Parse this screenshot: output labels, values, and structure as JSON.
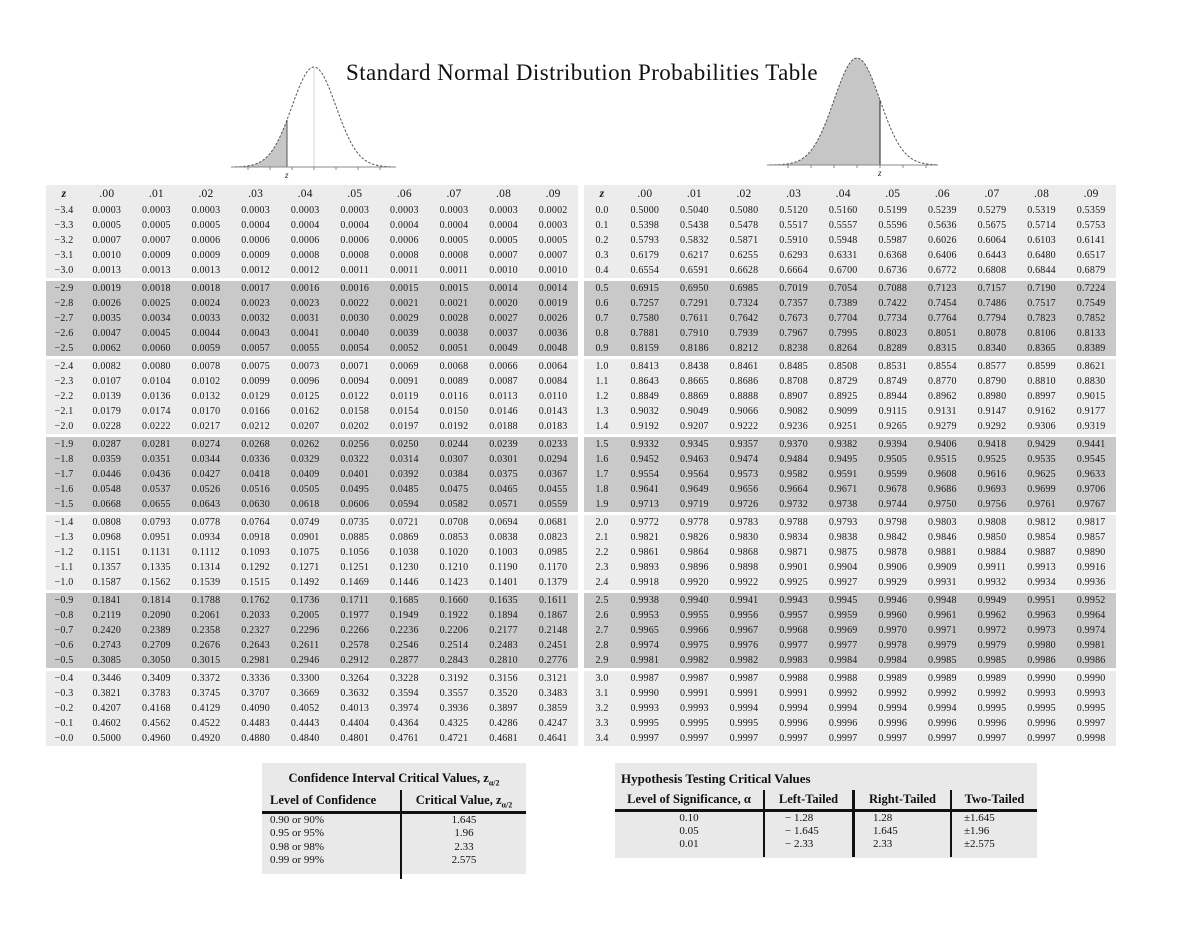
{
  "title": "Standard Normal Distribution Probabilities Table",
  "curves": {
    "left": {
      "axis_label": "z"
    },
    "right": {
      "axis_label": "z"
    }
  },
  "neg_table": {
    "header": [
      "z",
      ".00",
      ".01",
      ".02",
      ".03",
      ".04",
      ".05",
      ".06",
      ".07",
      ".08",
      ".09"
    ],
    "groups": [
      [
        [
          "−3.4",
          "0.0003",
          "0.0003",
          "0.0003",
          "0.0003",
          "0.0003",
          "0.0003",
          "0.0003",
          "0.0003",
          "0.0003",
          "0.0002"
        ],
        [
          "−3.3",
          "0.0005",
          "0.0005",
          "0.0005",
          "0.0004",
          "0.0004",
          "0.0004",
          "0.0004",
          "0.0004",
          "0.0004",
          "0.0003"
        ],
        [
          "−3.2",
          "0.0007",
          "0.0007",
          "0.0006",
          "0.0006",
          "0.0006",
          "0.0006",
          "0.0006",
          "0.0005",
          "0.0005",
          "0.0005"
        ],
        [
          "−3.1",
          "0.0010",
          "0.0009",
          "0.0009",
          "0.0009",
          "0.0008",
          "0.0008",
          "0.0008",
          "0.0008",
          "0.0007",
          "0.0007"
        ],
        [
          "−3.0",
          "0.0013",
          "0.0013",
          "0.0013",
          "0.0012",
          "0.0012",
          "0.0011",
          "0.0011",
          "0.0011",
          "0.0010",
          "0.0010"
        ]
      ],
      [
        [
          "−2.9",
          "0.0019",
          "0.0018",
          "0.0018",
          "0.0017",
          "0.0016",
          "0.0016",
          "0.0015",
          "0.0015",
          "0.0014",
          "0.0014"
        ],
        [
          "−2.8",
          "0.0026",
          "0.0025",
          "0.0024",
          "0.0023",
          "0.0023",
          "0.0022",
          "0.0021",
          "0.0021",
          "0.0020",
          "0.0019"
        ],
        [
          "−2.7",
          "0.0035",
          "0.0034",
          "0.0033",
          "0.0032",
          "0.0031",
          "0.0030",
          "0.0029",
          "0.0028",
          "0.0027",
          "0.0026"
        ],
        [
          "−2.6",
          "0.0047",
          "0.0045",
          "0.0044",
          "0.0043",
          "0.0041",
          "0.0040",
          "0.0039",
          "0.0038",
          "0.0037",
          "0.0036"
        ],
        [
          "−2.5",
          "0.0062",
          "0.0060",
          "0.0059",
          "0.0057",
          "0.0055",
          "0.0054",
          "0.0052",
          "0.0051",
          "0.0049",
          "0.0048"
        ]
      ],
      [
        [
          "−2.4",
          "0.0082",
          "0.0080",
          "0.0078",
          "0.0075",
          "0.0073",
          "0.0071",
          "0.0069",
          "0.0068",
          "0.0066",
          "0.0064"
        ],
        [
          "−2.3",
          "0.0107",
          "0.0104",
          "0.0102",
          "0.0099",
          "0.0096",
          "0.0094",
          "0.0091",
          "0.0089",
          "0.0087",
          "0.0084"
        ],
        [
          "−2.2",
          "0.0139",
          "0.0136",
          "0.0132",
          "0.0129",
          "0.0125",
          "0.0122",
          "0.0119",
          "0.0116",
          "0.0113",
          "0.0110"
        ],
        [
          "−2.1",
          "0.0179",
          "0.0174",
          "0.0170",
          "0.0166",
          "0.0162",
          "0.0158",
          "0.0154",
          "0.0150",
          "0.0146",
          "0.0143"
        ],
        [
          "−2.0",
          "0.0228",
          "0.0222",
          "0.0217",
          "0.0212",
          "0.0207",
          "0.0202",
          "0.0197",
          "0.0192",
          "0.0188",
          "0.0183"
        ]
      ],
      [
        [
          "−1.9",
          "0.0287",
          "0.0281",
          "0.0274",
          "0.0268",
          "0.0262",
          "0.0256",
          "0.0250",
          "0.0244",
          "0.0239",
          "0.0233"
        ],
        [
          "−1.8",
          "0.0359",
          "0.0351",
          "0.0344",
          "0.0336",
          "0.0329",
          "0.0322",
          "0.0314",
          "0.0307",
          "0.0301",
          "0.0294"
        ],
        [
          "−1.7",
          "0.0446",
          "0.0436",
          "0.0427",
          "0.0418",
          "0.0409",
          "0.0401",
          "0.0392",
          "0.0384",
          "0.0375",
          "0.0367"
        ],
        [
          "−1.6",
          "0.0548",
          "0.0537",
          "0.0526",
          "0.0516",
          "0.0505",
          "0.0495",
          "0.0485",
          "0.0475",
          "0.0465",
          "0.0455"
        ],
        [
          "−1.5",
          "0.0668",
          "0.0655",
          "0.0643",
          "0.0630",
          "0.0618",
          "0.0606",
          "0.0594",
          "0.0582",
          "0.0571",
          "0.0559"
        ]
      ],
      [
        [
          "−1.4",
          "0.0808",
          "0.0793",
          "0.0778",
          "0.0764",
          "0.0749",
          "0.0735",
          "0.0721",
          "0.0708",
          "0.0694",
          "0.0681"
        ],
        [
          "−1.3",
          "0.0968",
          "0.0951",
          "0.0934",
          "0.0918",
          "0.0901",
          "0.0885",
          "0.0869",
          "0.0853",
          "0.0838",
          "0.0823"
        ],
        [
          "−1.2",
          "0.1151",
          "0.1131",
          "0.1112",
          "0.1093",
          "0.1075",
          "0.1056",
          "0.1038",
          "0.1020",
          "0.1003",
          "0.0985"
        ],
        [
          "−1.1",
          "0.1357",
          "0.1335",
          "0.1314",
          "0.1292",
          "0.1271",
          "0.1251",
          "0.1230",
          "0.1210",
          "0.1190",
          "0.1170"
        ],
        [
          "−1.0",
          "0.1587",
          "0.1562",
          "0.1539",
          "0.1515",
          "0.1492",
          "0.1469",
          "0.1446",
          "0.1423",
          "0.1401",
          "0.1379"
        ]
      ],
      [
        [
          "−0.9",
          "0.1841",
          "0.1814",
          "0.1788",
          "0.1762",
          "0.1736",
          "0.1711",
          "0.1685",
          "0.1660",
          "0.1635",
          "0.1611"
        ],
        [
          "−0.8",
          "0.2119",
          "0.2090",
          "0.2061",
          "0.2033",
          "0.2005",
          "0.1977",
          "0.1949",
          "0.1922",
          "0.1894",
          "0.1867"
        ],
        [
          "−0.7",
          "0.2420",
          "0.2389",
          "0.2358",
          "0.2327",
          "0.2296",
          "0.2266",
          "0.2236",
          "0.2206",
          "0.2177",
          "0.2148"
        ],
        [
          "−0.6",
          "0.2743",
          "0.2709",
          "0.2676",
          "0.2643",
          "0.2611",
          "0.2578",
          "0.2546",
          "0.2514",
          "0.2483",
          "0.2451"
        ],
        [
          "−0.5",
          "0.3085",
          "0.3050",
          "0.3015",
          "0.2981",
          "0.2946",
          "0.2912",
          "0.2877",
          "0.2843",
          "0.2810",
          "0.2776"
        ]
      ],
      [
        [
          "−0.4",
          "0.3446",
          "0.3409",
          "0.3372",
          "0.3336",
          "0.3300",
          "0.3264",
          "0.3228",
          "0.3192",
          "0.3156",
          "0.3121"
        ],
        [
          "−0.3",
          "0.3821",
          "0.3783",
          "0.3745",
          "0.3707",
          "0.3669",
          "0.3632",
          "0.3594",
          "0.3557",
          "0.3520",
          "0.3483"
        ],
        [
          "−0.2",
          "0.4207",
          "0.4168",
          "0.4129",
          "0.4090",
          "0.4052",
          "0.4013",
          "0.3974",
          "0.3936",
          "0.3897",
          "0.3859"
        ],
        [
          "−0.1",
          "0.4602",
          "0.4562",
          "0.4522",
          "0.4483",
          "0.4443",
          "0.4404",
          "0.4364",
          "0.4325",
          "0.4286",
          "0.4247"
        ],
        [
          "−0.0",
          "0.5000",
          "0.4960",
          "0.4920",
          "0.4880",
          "0.4840",
          "0.4801",
          "0.4761",
          "0.4721",
          "0.4681",
          "0.4641"
        ]
      ]
    ]
  },
  "pos_table": {
    "header": [
      "z",
      ".00",
      ".01",
      ".02",
      ".03",
      ".04",
      ".05",
      ".06",
      ".07",
      ".08",
      ".09"
    ],
    "groups": [
      [
        [
          "0.0",
          "0.5000",
          "0.5040",
          "0.5080",
          "0.5120",
          "0.5160",
          "0.5199",
          "0.5239",
          "0.5279",
          "0.5319",
          "0.5359"
        ],
        [
          "0.1",
          "0.5398",
          "0.5438",
          "0.5478",
          "0.5517",
          "0.5557",
          "0.5596",
          "0.5636",
          "0.5675",
          "0.5714",
          "0.5753"
        ],
        [
          "0.2",
          "0.5793",
          "0.5832",
          "0.5871",
          "0.5910",
          "0.5948",
          "0.5987",
          "0.6026",
          "0.6064",
          "0.6103",
          "0.6141"
        ],
        [
          "0.3",
          "0.6179",
          "0.6217",
          "0.6255",
          "0.6293",
          "0.6331",
          "0.6368",
          "0.6406",
          "0.6443",
          "0.6480",
          "0.6517"
        ],
        [
          "0.4",
          "0.6554",
          "0.6591",
          "0.6628",
          "0.6664",
          "0.6700",
          "0.6736",
          "0.6772",
          "0.6808",
          "0.6844",
          "0.6879"
        ]
      ],
      [
        [
          "0.5",
          "0.6915",
          "0.6950",
          "0.6985",
          "0.7019",
          "0.7054",
          "0.7088",
          "0.7123",
          "0.7157",
          "0.7190",
          "0.7224"
        ],
        [
          "0.6",
          "0.7257",
          "0.7291",
          "0.7324",
          "0.7357",
          "0.7389",
          "0.7422",
          "0.7454",
          "0.7486",
          "0.7517",
          "0.7549"
        ],
        [
          "0.7",
          "0.7580",
          "0.7611",
          "0.7642",
          "0.7673",
          "0.7704",
          "0.7734",
          "0.7764",
          "0.7794",
          "0.7823",
          "0.7852"
        ],
        [
          "0.8",
          "0.7881",
          "0.7910",
          "0.7939",
          "0.7967",
          "0.7995",
          "0.8023",
          "0.8051",
          "0.8078",
          "0.8106",
          "0.8133"
        ],
        [
          "0.9",
          "0.8159",
          "0.8186",
          "0.8212",
          "0.8238",
          "0.8264",
          "0.8289",
          "0.8315",
          "0.8340",
          "0.8365",
          "0.8389"
        ]
      ],
      [
        [
          "1.0",
          "0.8413",
          "0.8438",
          "0.8461",
          "0.8485",
          "0.8508",
          "0.8531",
          "0.8554",
          "0.8577",
          "0.8599",
          "0.8621"
        ],
        [
          "1.1",
          "0.8643",
          "0.8665",
          "0.8686",
          "0.8708",
          "0.8729",
          "0.8749",
          "0.8770",
          "0.8790",
          "0.8810",
          "0.8830"
        ],
        [
          "1.2",
          "0.8849",
          "0.8869",
          "0.8888",
          "0.8907",
          "0.8925",
          "0.8944",
          "0.8962",
          "0.8980",
          "0.8997",
          "0.9015"
        ],
        [
          "1.3",
          "0.9032",
          "0.9049",
          "0.9066",
          "0.9082",
          "0.9099",
          "0.9115",
          "0.9131",
          "0.9147",
          "0.9162",
          "0.9177"
        ],
        [
          "1.4",
          "0.9192",
          "0.9207",
          "0.9222",
          "0.9236",
          "0.9251",
          "0.9265",
          "0.9279",
          "0.9292",
          "0.9306",
          "0.9319"
        ]
      ],
      [
        [
          "1.5",
          "0.9332",
          "0.9345",
          "0.9357",
          "0.9370",
          "0.9382",
          "0.9394",
          "0.9406",
          "0.9418",
          "0.9429",
          "0.9441"
        ],
        [
          "1.6",
          "0.9452",
          "0.9463",
          "0.9474",
          "0.9484",
          "0.9495",
          "0.9505",
          "0.9515",
          "0.9525",
          "0.9535",
          "0.9545"
        ],
        [
          "1.7",
          "0.9554",
          "0.9564",
          "0.9573",
          "0.9582",
          "0.9591",
          "0.9599",
          "0.9608",
          "0.9616",
          "0.9625",
          "0.9633"
        ],
        [
          "1.8",
          "0.9641",
          "0.9649",
          "0.9656",
          "0.9664",
          "0.9671",
          "0.9678",
          "0.9686",
          "0.9693",
          "0.9699",
          "0.9706"
        ],
        [
          "1.9",
          "0.9713",
          "0.9719",
          "0.9726",
          "0.9732",
          "0.9738",
          "0.9744",
          "0.9750",
          "0.9756",
          "0.9761",
          "0.9767"
        ]
      ],
      [
        [
          "2.0",
          "0.9772",
          "0.9778",
          "0.9783",
          "0.9788",
          "0.9793",
          "0.9798",
          "0.9803",
          "0.9808",
          "0.9812",
          "0.9817"
        ],
        [
          "2.1",
          "0.9821",
          "0.9826",
          "0.9830",
          "0.9834",
          "0.9838",
          "0.9842",
          "0.9846",
          "0.9850",
          "0.9854",
          "0.9857"
        ],
        [
          "2.2",
          "0.9861",
          "0.9864",
          "0.9868",
          "0.9871",
          "0.9875",
          "0.9878",
          "0.9881",
          "0.9884",
          "0.9887",
          "0.9890"
        ],
        [
          "2.3",
          "0.9893",
          "0.9896",
          "0.9898",
          "0.9901",
          "0.9904",
          "0.9906",
          "0.9909",
          "0.9911",
          "0.9913",
          "0.9916"
        ],
        [
          "2.4",
          "0.9918",
          "0.9920",
          "0.9922",
          "0.9925",
          "0.9927",
          "0.9929",
          "0.9931",
          "0.9932",
          "0.9934",
          "0.9936"
        ]
      ],
      [
        [
          "2.5",
          "0.9938",
          "0.9940",
          "0.9941",
          "0.9943",
          "0.9945",
          "0.9946",
          "0.9948",
          "0.9949",
          "0.9951",
          "0.9952"
        ],
        [
          "2.6",
          "0.9953",
          "0.9955",
          "0.9956",
          "0.9957",
          "0.9959",
          "0.9960",
          "0.9961",
          "0.9962",
          "0.9963",
          "0.9964"
        ],
        [
          "2.7",
          "0.9965",
          "0.9966",
          "0.9967",
          "0.9968",
          "0.9969",
          "0.9970",
          "0.9971",
          "0.9972",
          "0.9973",
          "0.9974"
        ],
        [
          "2.8",
          "0.9974",
          "0.9975",
          "0.9976",
          "0.9977",
          "0.9977",
          "0.9978",
          "0.9979",
          "0.9979",
          "0.9980",
          "0.9981"
        ],
        [
          "2.9",
          "0.9981",
          "0.9982",
          "0.9982",
          "0.9983",
          "0.9984",
          "0.9984",
          "0.9985",
          "0.9985",
          "0.9986",
          "0.9986"
        ]
      ],
      [
        [
          "3.0",
          "0.9987",
          "0.9987",
          "0.9987",
          "0.9988",
          "0.9988",
          "0.9989",
          "0.9989",
          "0.9989",
          "0.9990",
          "0.9990"
        ],
        [
          "3.1",
          "0.9990",
          "0.9991",
          "0.9991",
          "0.9991",
          "0.9992",
          "0.9992",
          "0.9992",
          "0.9992",
          "0.9993",
          "0.9993"
        ],
        [
          "3.2",
          "0.9993",
          "0.9993",
          "0.9994",
          "0.9994",
          "0.9994",
          "0.9994",
          "0.9994",
          "0.9995",
          "0.9995",
          "0.9995"
        ],
        [
          "3.3",
          "0.9995",
          "0.9995",
          "0.9995",
          "0.9996",
          "0.9996",
          "0.9996",
          "0.9996",
          "0.9996",
          "0.9996",
          "0.9997"
        ],
        [
          "3.4",
          "0.9997",
          "0.9997",
          "0.9997",
          "0.9997",
          "0.9997",
          "0.9997",
          "0.9997",
          "0.9997",
          "0.9997",
          "0.9998"
        ]
      ]
    ]
  },
  "ci_table": {
    "title": "Confidence Interval Critical Values, z",
    "title_sub": "α/2",
    "col1_header": "Level of Confidence",
    "col2_header": "Critical Value, z",
    "col2_sub": "α/2",
    "rows": [
      [
        "0.90 or 90%",
        "1.645"
      ],
      [
        "0.95 or 95%",
        "1.96"
      ],
      [
        "0.98 or 98%",
        "2.33"
      ],
      [
        "0.99 or 99%",
        "2.575"
      ]
    ]
  },
  "ht_table": {
    "title": "Hypothesis Testing Critical Values",
    "headers": [
      "Level of Significance, α",
      "Left-Tailed",
      "Right-Tailed",
      "Two-Tailed"
    ],
    "rows": [
      [
        "0.10",
        "− 1.28",
        "1.28",
        "±1.645"
      ],
      [
        "0.05",
        "− 1.645",
        "1.645",
        "±1.96"
      ],
      [
        "0.01",
        "− 2.33",
        "2.33",
        "±2.575"
      ]
    ]
  }
}
